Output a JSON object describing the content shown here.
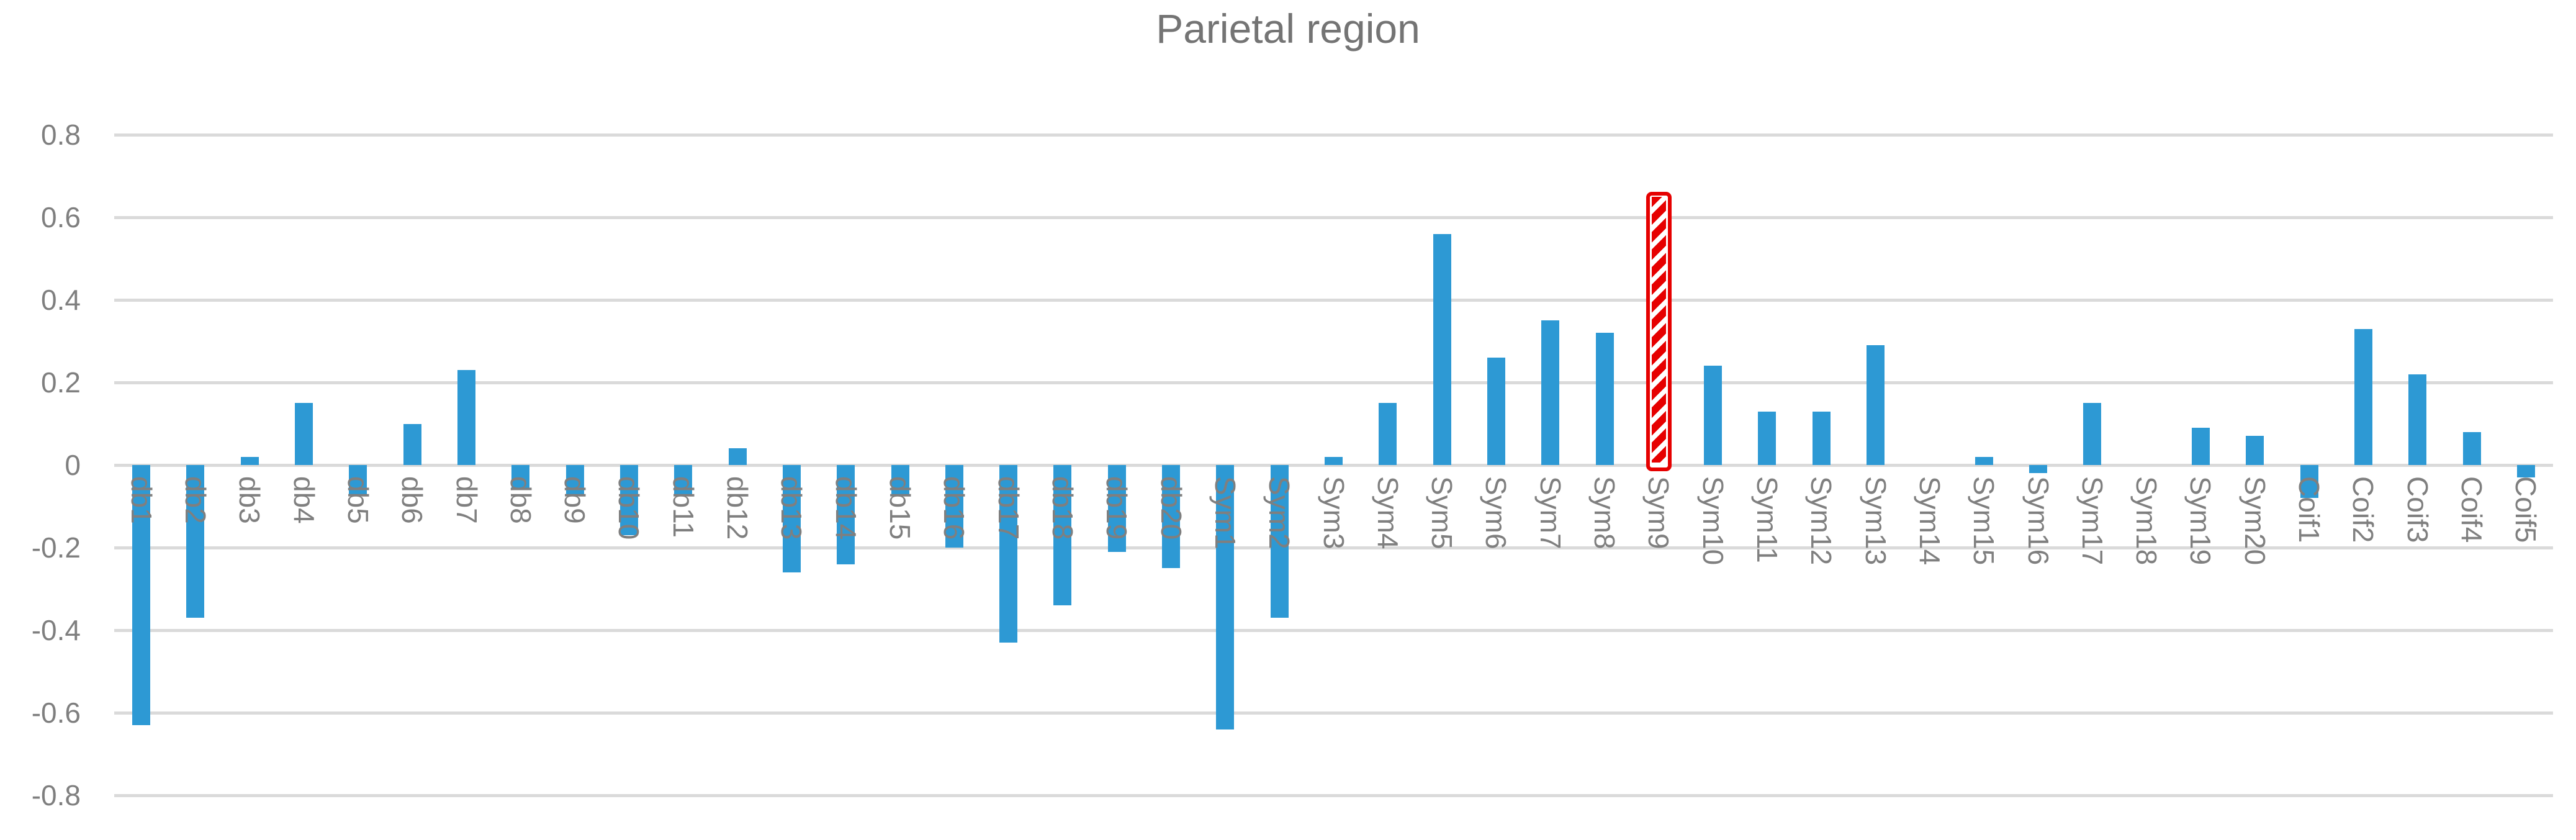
{
  "title": "Parietal region",
  "chart_data": {
    "type": "bar",
    "title": "Parietal region",
    "categories": [
      "db1",
      "db2",
      "db3",
      "db4",
      "db5",
      "db6",
      "db7",
      "db8",
      "db9",
      "db10",
      "db11",
      "db12",
      "db13",
      "db14",
      "db15",
      "db16",
      "db17",
      "db18",
      "db19",
      "db20",
      "Sym1",
      "Sym2",
      "Sym3",
      "Sym4",
      "Sym5",
      "Sym6",
      "Sym7",
      "Sym8",
      "Sym9",
      "Sym10",
      "Sym11",
      "Sym12",
      "Sym13",
      "Sym14",
      "Sym15",
      "Sym16",
      "Sym17",
      "Sym18",
      "Sym19",
      "Sym20",
      "Coif1",
      "Coif2",
      "Coif3",
      "Coif4",
      "Coif5"
    ],
    "values": [
      -0.63,
      -0.37,
      0.02,
      0.15,
      -0.07,
      0.1,
      0.23,
      -0.06,
      -0.07,
      -0.17,
      -0.07,
      0.04,
      -0.26,
      -0.24,
      -0.07,
      -0.2,
      -0.43,
      -0.34,
      -0.21,
      -0.25,
      -0.64,
      -0.37,
      0.02,
      0.15,
      0.56,
      0.26,
      0.35,
      0.32,
      0.65,
      0.24,
      0.13,
      0.13,
      0.29,
      0.0,
      0.02,
      -0.02,
      0.15,
      0.0,
      0.09,
      0.07,
      -0.08,
      0.33,
      0.22,
      0.08,
      -0.03
    ],
    "highlight": {
      "category": "Sym9",
      "index": 28,
      "value": 0.65,
      "style": "thick red outline with white diagonal stripe pattern fill"
    },
    "xlabel": "",
    "ylabel": "",
    "ylim": [
      -0.8,
      0.8
    ],
    "ytick_values": [
      0.8,
      0.6,
      0.4,
      0.2,
      0,
      -0.2,
      -0.4,
      -0.6,
      -0.8
    ],
    "ytick_labels": [
      "0.8",
      "0.6",
      "0.4",
      "0.2",
      "0",
      "-0.2",
      "-0.4",
      "-0.6",
      "-0.8"
    ],
    "grid": true,
    "legend": false,
    "colors": {
      "bar": "#2D99D4",
      "highlight_red": "#E60000",
      "pattern_stripe": "#FFFFFF",
      "gridline": "#DADADA",
      "tick_text": "#7F7F7F",
      "title_text": "#747474",
      "background": "#FFFFFF"
    }
  }
}
